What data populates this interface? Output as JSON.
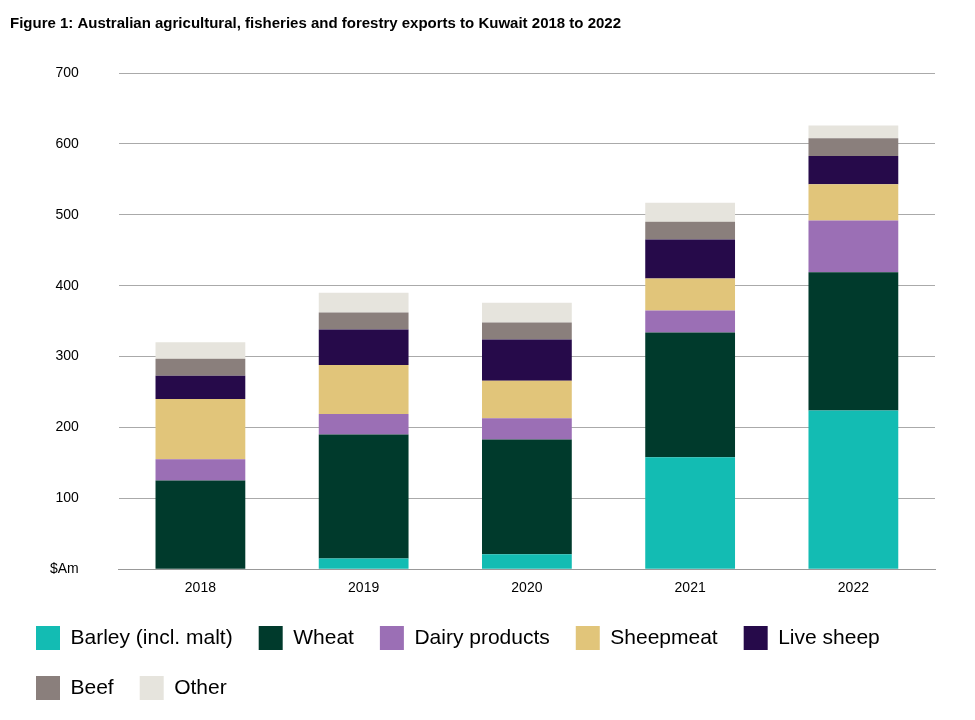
{
  "chart_data": {
    "type": "bar",
    "title": "Figure 1: Australian agricultural, fisheries and forestry exports to Kuwait 2018 to 2022",
    "categories": [
      "2018",
      "2019",
      "2020",
      "2021",
      "2022"
    ],
    "series": [
      {
        "name": "Barley (incl. malt)",
        "color": "#13bcb3",
        "values": [
          0,
          15,
          21,
          158,
          224
        ]
      },
      {
        "name": "Wheat",
        "color": "#003a2c",
        "values": [
          125,
          175,
          162,
          176,
          195
        ]
      },
      {
        "name": "Dairy products",
        "color": "#9b6fb5",
        "values": [
          30,
          29,
          30,
          31,
          73
        ]
      },
      {
        "name": "Sheepmeat",
        "color": "#e1c57a",
        "values": [
          85,
          69,
          53,
          45,
          51
        ]
      },
      {
        "name": "Live sheep",
        "color": "#260a4a",
        "values": [
          33,
          50,
          58,
          55,
          40
        ]
      },
      {
        "name": "Beef",
        "color": "#8a7f7c",
        "values": [
          24,
          24,
          24,
          25,
          25
        ]
      },
      {
        "name": "Other",
        "color": "#e6e4dd",
        "values": [
          23,
          28,
          28,
          27,
          18
        ]
      }
    ],
    "ylim": [
      0,
      700
    ],
    "yticks": [
      {
        "value": 0,
        "label": "$Am"
      },
      100,
      200,
      300,
      400,
      500,
      600,
      700
    ],
    "stacked": true,
    "grid": true,
    "legend": "bottom"
  }
}
